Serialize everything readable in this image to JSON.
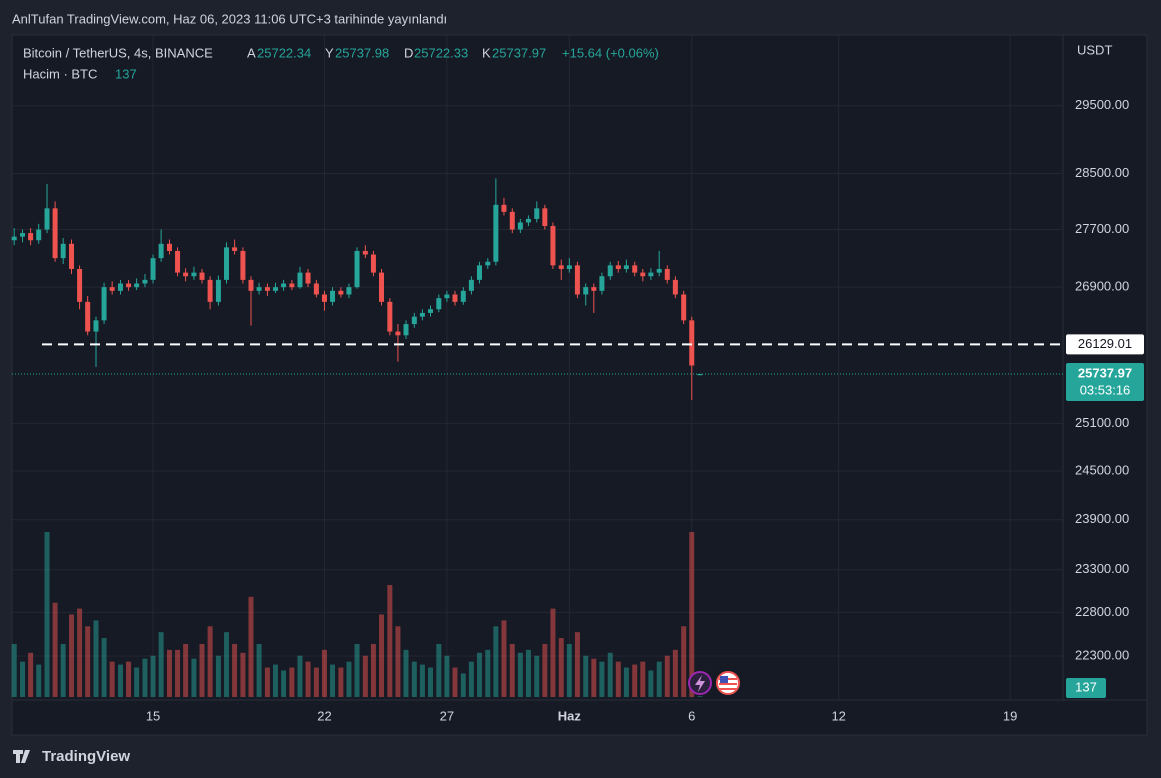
{
  "publisher": "AnlTufan TradingView.com, Haz 06, 2023 11:06 UTC+3 tarihinde yayınlandı",
  "brand": "TradingView",
  "chart_data": {
    "type": "candlestick",
    "title": "Bitcoin / TetherUS, 4s, BINANCE",
    "ohlc_labels": [
      "A",
      "Y",
      "D",
      "K"
    ],
    "change_label": "+15.64 (+0.06%)",
    "volume_label": "Hacim · BTC",
    "y_label": "USDT",
    "countdown": "03:53:16",
    "hline": 26129.01,
    "log_scale": true,
    "grid": true,
    "up_color": "#26a69a",
    "down_color": "#ef5350",
    "ylim": [
      21840,
      30580
    ],
    "yticks": [
      {
        "value": 29500,
        "label": "29500.00"
      },
      {
        "value": 28500,
        "label": "28500.00"
      },
      {
        "value": 27700,
        "label": "27700.00"
      },
      {
        "value": 26900,
        "label": "26900.00"
      },
      {
        "value": 25100,
        "label": "25100.00"
      },
      {
        "value": 24500,
        "label": "24500.00"
      },
      {
        "value": 23900,
        "label": "23900.00"
      },
      {
        "value": 23300,
        "label": "23300.00"
      },
      {
        "value": 22800,
        "label": "22800.00"
      },
      {
        "value": 22300,
        "label": "22300.00"
      }
    ],
    "xlim": [
      9.24,
      52.16
    ],
    "xticks": [
      15,
      22,
      27,
      {
        "value": 32,
        "label": "Haz"
      },
      {
        "value": 37,
        "label": "6"
      },
      {
        "value": 43,
        "label": "12"
      },
      {
        "value": 50,
        "label": "19"
      }
    ],
    "x": [
      9.33,
      9.67,
      10,
      10.33,
      10.67,
      11,
      11.33,
      11.67,
      12,
      12.33,
      12.67,
      13,
      13.33,
      13.67,
      14,
      14.33,
      14.67,
      15,
      15.33,
      15.67,
      16,
      16.33,
      16.67,
      17,
      17.33,
      17.67,
      18,
      18.33,
      18.67,
      19,
      19.33,
      19.67,
      20,
      20.33,
      20.67,
      21,
      21.33,
      21.67,
      22,
      22.33,
      22.67,
      23,
      23.33,
      23.67,
      24,
      24.33,
      24.67,
      25,
      25.33,
      25.67,
      26,
      26.33,
      26.67,
      27,
      27.33,
      27.67,
      28,
      28.33,
      28.67,
      29,
      29.33,
      29.67,
      30,
      30.33,
      30.67,
      31,
      31.33,
      31.67,
      32,
      32.33,
      32.67,
      33,
      33.33,
      33.67,
      34,
      34.33,
      34.67,
      35,
      35.33,
      35.67,
      36,
      36.33,
      36.67,
      37,
      37.33
    ],
    "ohlc": [
      [
        27550,
        27720,
        27480,
        27600
      ],
      [
        27600,
        27700,
        27520,
        27650
      ],
      [
        27650,
        27720,
        27480,
        27550
      ],
      [
        27550,
        27780,
        27500,
        27700
      ],
      [
        27700,
        28350,
        27650,
        28000
      ],
      [
        28000,
        28100,
        27250,
        27300
      ],
      [
        27300,
        27580,
        27220,
        27500
      ],
      [
        27500,
        27560,
        27080,
        27150
      ],
      [
        27150,
        27200,
        26600,
        26700
      ],
      [
        26700,
        26780,
        26250,
        26300
      ],
      [
        26300,
        26500,
        25830,
        26450
      ],
      [
        26450,
        26960,
        26400,
        26900
      ],
      [
        26900,
        26980,
        26800,
        26850
      ],
      [
        26850,
        27000,
        26800,
        26950
      ],
      [
        26950,
        27000,
        26850,
        26900
      ],
      [
        26900,
        27020,
        26860,
        26950
      ],
      [
        26950,
        27080,
        26900,
        27000
      ],
      [
        27000,
        27350,
        26950,
        27300
      ],
      [
        27300,
        27700,
        27250,
        27500
      ],
      [
        27500,
        27560,
        27350,
        27400
      ],
      [
        27400,
        27450,
        27050,
        27100
      ],
      [
        27100,
        27160,
        26980,
        27050
      ],
      [
        27050,
        27180,
        27000,
        27100
      ],
      [
        27100,
        27150,
        26950,
        27000
      ],
      [
        27000,
        27050,
        26600,
        26700
      ],
      [
        26700,
        27060,
        26650,
        27000
      ],
      [
        27000,
        27520,
        26950,
        27450
      ],
      [
        27450,
        27560,
        27350,
        27400
      ],
      [
        27400,
        27450,
        26950,
        27000
      ],
      [
        27000,
        27050,
        26380,
        26850
      ],
      [
        26850,
        26960,
        26800,
        26900
      ],
      [
        26900,
        26950,
        26780,
        26850
      ],
      [
        26850,
        26960,
        26820,
        26900
      ],
      [
        26900,
        27000,
        26850,
        26950
      ],
      [
        26950,
        27000,
        26860,
        26900
      ],
      [
        26900,
        27180,
        26880,
        27100
      ],
      [
        27100,
        27150,
        26900,
        26950
      ],
      [
        26950,
        27000,
        26760,
        26800
      ],
      [
        26800,
        26850,
        26580,
        26700
      ],
      [
        26700,
        26900,
        26650,
        26850
      ],
      [
        26850,
        26900,
        26760,
        26800
      ],
      [
        26800,
        26950,
        26750,
        26900
      ],
      [
        26900,
        27450,
        26880,
        27400
      ],
      [
        27400,
        27480,
        27300,
        27350
      ],
      [
        27350,
        27400,
        27050,
        27100
      ],
      [
        27100,
        27150,
        26650,
        26700
      ],
      [
        26700,
        26750,
        26250,
        26300
      ],
      [
        26300,
        26400,
        25900,
        26250
      ],
      [
        26250,
        26450,
        26200,
        26400
      ],
      [
        26400,
        26550,
        26350,
        26500
      ],
      [
        26500,
        26600,
        26450,
        26550
      ],
      [
        26550,
        26650,
        26500,
        26600
      ],
      [
        26600,
        26800,
        26560,
        26750
      ],
      [
        26750,
        26850,
        26700,
        26800
      ],
      [
        26800,
        26850,
        26650,
        26700
      ],
      [
        26700,
        26900,
        26660,
        26850
      ],
      [
        26850,
        27050,
        26800,
        27000
      ],
      [
        27000,
        27250,
        26950,
        27200
      ],
      [
        27200,
        27300,
        27150,
        27250
      ],
      [
        27250,
        28430,
        27200,
        28050
      ],
      [
        28050,
        28150,
        27900,
        27950
      ],
      [
        27950,
        28000,
        27650,
        27700
      ],
      [
        27700,
        27850,
        27650,
        27800
      ],
      [
        27800,
        27900,
        27750,
        27850
      ],
      [
        27850,
        28100,
        27800,
        28000
      ],
      [
        28000,
        28050,
        27700,
        27750
      ],
      [
        27750,
        27800,
        27150,
        27200
      ],
      [
        27200,
        27280,
        27000,
        27150
      ],
      [
        27150,
        27300,
        27100,
        27200
      ],
      [
        27200,
        27250,
        26750,
        26800
      ],
      [
        26800,
        26950,
        26650,
        26900
      ],
      [
        26900,
        26950,
        26550,
        26850
      ],
      [
        26850,
        27100,
        26800,
        27050
      ],
      [
        27050,
        27250,
        27000,
        27200
      ],
      [
        27200,
        27260,
        27100,
        27150
      ],
      [
        27150,
        27280,
        27100,
        27200
      ],
      [
        27200,
        27250,
        27050,
        27100
      ],
      [
        27100,
        27150,
        26980,
        27050
      ],
      [
        27050,
        27160,
        27000,
        27100
      ],
      [
        27100,
        27400,
        27050,
        27150
      ],
      [
        27150,
        27200,
        26950,
        27000
      ],
      [
        27000,
        27050,
        26750,
        26800
      ],
      [
        26800,
        26850,
        26400,
        26450
      ],
      [
        26450,
        26500,
        25400,
        25850
      ],
      [
        25722.34,
        25737.98,
        25722.33,
        25737.97
      ]
    ],
    "volume": [
      9000,
      6000,
      7500,
      5500,
      28000,
      16000,
      9000,
      14000,
      15000,
      12000,
      13000,
      10000,
      6000,
      5500,
      6000,
      5000,
      6500,
      7000,
      11000,
      8000,
      8000,
      9000,
      6500,
      9000,
      12000,
      7000,
      11000,
      9000,
      7500,
      17000,
      9000,
      5000,
      5500,
      4500,
      5000,
      7000,
      6000,
      5000,
      8000,
      5500,
      5000,
      6000,
      9000,
      7000,
      9000,
      14000,
      19000,
      12000,
      8000,
      6000,
      5500,
      5000,
      9000,
      7000,
      5000,
      4000,
      6000,
      7500,
      8000,
      12000,
      13000,
      9000,
      7500,
      8000,
      7000,
      9000,
      15000,
      10000,
      9000,
      11000,
      7000,
      6500,
      6000,
      7500,
      6000,
      5000,
      5500,
      6000,
      4500,
      6000,
      7000,
      8000,
      12000,
      28000,
      137
    ]
  }
}
